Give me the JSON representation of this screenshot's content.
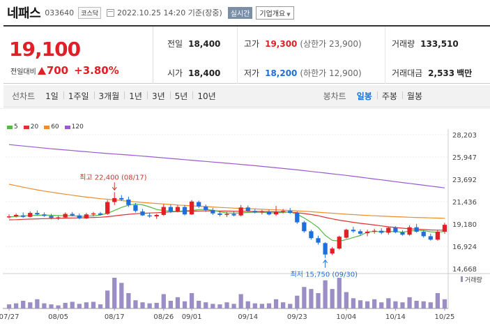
{
  "header": {
    "name": "네패스",
    "code": "033640",
    "market": "코스닥",
    "timestamp": "2022.10.25 14:20 기준(장중)",
    "realtime": "실시간",
    "company_btn": "기업개요"
  },
  "price": {
    "current": "19,100",
    "change_label": "전일대비",
    "change": "700",
    "change_pct": "+3.80%",
    "up_color": "#e01f26",
    "down_color": "#1e6fd9"
  },
  "quote": {
    "prev_close_label": "전일",
    "prev_close": "18,400",
    "open_label": "시가",
    "open": "18,400",
    "high_label": "고가",
    "high": "19,300",
    "upper_limit": "(상한가 23,900)",
    "low_label": "저가",
    "low": "18,200",
    "lower_limit": "(하한가 12,900)",
    "volume_label": "거래량",
    "volume": "133,510",
    "amount_label": "거래대금",
    "amount": "2,533",
    "amount_unit": "백만"
  },
  "toolbar": {
    "line_label": "선차트",
    "periods": [
      "1일",
      "1주일",
      "3개월",
      "1년",
      "3년",
      "5년",
      "10년"
    ],
    "candle_label": "봉차트",
    "candle_types": [
      "일봉",
      "주봉",
      "월봉"
    ],
    "active_candle": 0
  },
  "chart_data": {
    "type": "candlestick",
    "legend": [
      {
        "name": "5",
        "color": "#57b847"
      },
      {
        "name": "20",
        "color": "#e03131"
      },
      {
        "name": "60",
        "color": "#f08c2a"
      },
      {
        "name": "120",
        "color": "#9b59d0"
      }
    ],
    "y_ticks": [
      "28,203",
      "25,947",
      "23,692",
      "21,436",
      "19,180",
      "16,924",
      "14,668"
    ],
    "ylim": [
      14668,
      28203
    ],
    "x_ticks": [
      "07/27",
      "08/05",
      "08/17",
      "08/26",
      "09/01",
      "09/14",
      "09/23",
      "10/04",
      "10/14",
      "10/25"
    ],
    "x_tick_index": [
      0,
      7,
      15,
      22,
      26,
      34,
      41,
      48,
      55,
      62
    ],
    "volume_label": "거래량",
    "max_label": "최고 22,400 (08/17)",
    "max_index": 15,
    "max_value": 22400,
    "min_label": "최저 15,750 (09/30)",
    "min_index": 45,
    "min_value": 15750,
    "candles": [
      [
        19850,
        20150,
        19750,
        19950
      ],
      [
        19950,
        20250,
        19850,
        20100
      ],
      [
        20050,
        20350,
        19800,
        19900
      ],
      [
        19900,
        20450,
        19850,
        20300
      ],
      [
        20300,
        20550,
        20050,
        20150
      ],
      [
        20150,
        20350,
        19900,
        20000
      ],
      [
        20000,
        20200,
        19650,
        19800
      ],
      [
        19800,
        20000,
        19600,
        19850
      ],
      [
        19850,
        20350,
        19750,
        20200
      ],
      [
        20200,
        20400,
        19950,
        20050
      ],
      [
        20050,
        20250,
        19650,
        19750
      ],
      [
        19750,
        20300,
        19700,
        20150
      ],
      [
        20150,
        20400,
        19950,
        20250
      ],
      [
        20250,
        20400,
        20050,
        20100
      ],
      [
        20200,
        21600,
        20100,
        21400
      ],
      [
        21400,
        22400,
        21100,
        21800
      ],
      [
        21800,
        22100,
        21500,
        21650
      ],
      [
        21650,
        21950,
        20900,
        21100
      ],
      [
        21100,
        21300,
        20350,
        20500
      ],
      [
        20450,
        20700,
        20000,
        20050
      ],
      [
        20050,
        20300,
        19800,
        19950
      ],
      [
        19950,
        20200,
        19700,
        20100
      ],
      [
        20100,
        21200,
        20000,
        20900
      ],
      [
        20900,
        21150,
        20300,
        20450
      ],
      [
        20450,
        21100,
        20350,
        20900
      ],
      [
        20900,
        21100,
        20050,
        20150
      ],
      [
        20150,
        21600,
        20100,
        21450
      ],
      [
        21400,
        21550,
        20800,
        20950
      ],
      [
        20950,
        21150,
        20400,
        20600
      ],
      [
        20600,
        20800,
        20100,
        20250
      ],
      [
        20250,
        20500,
        19950,
        20100
      ],
      [
        20100,
        20400,
        19900,
        20200
      ],
      [
        20200,
        20500,
        19950,
        20050
      ],
      [
        20050,
        21100,
        19950,
        20850
      ],
      [
        20850,
        21050,
        20400,
        20500
      ],
      [
        20500,
        20700,
        20250,
        20350
      ],
      [
        20350,
        20600,
        20150,
        20450
      ],
      [
        20450,
        20650,
        20050,
        20150
      ],
      [
        20150,
        21000,
        20000,
        20400
      ],
      [
        20400,
        20700,
        20250,
        20500
      ],
      [
        20500,
        20800,
        20200,
        20300
      ],
      [
        20300,
        20450,
        19200,
        19350
      ],
      [
        19350,
        19500,
        18300,
        18450
      ],
      [
        18450,
        18600,
        17600,
        17750
      ],
      [
        17750,
        18000,
        17100,
        17300
      ],
      [
        17250,
        17350,
        15750,
        16100
      ],
      [
        16200,
        16850,
        16050,
        16700
      ],
      [
        16700,
        18000,
        16600,
        17900
      ],
      [
        17800,
        18700,
        17700,
        18600
      ],
      [
        18600,
        18900,
        18300,
        18450
      ],
      [
        18450,
        18650,
        18050,
        18200
      ],
      [
        18250,
        18600,
        17950,
        18400
      ],
      [
        18400,
        18700,
        18200,
        18500
      ],
      [
        18500,
        18750,
        18150,
        18300
      ],
      [
        18300,
        18900,
        18100,
        18800
      ],
      [
        18800,
        18950,
        18250,
        18350
      ],
      [
        18350,
        18550,
        18000,
        18100
      ],
      [
        18100,
        19050,
        18000,
        18850
      ],
      [
        18850,
        19200,
        18300,
        18400
      ],
      [
        18400,
        18550,
        17800,
        17950
      ],
      [
        17950,
        18200,
        17500,
        17600
      ],
      [
        17600,
        18600,
        17500,
        18400
      ],
      [
        18400,
        19300,
        18200,
        19100
      ]
    ],
    "volumes": [
      8,
      10,
      15,
      12,
      18,
      10,
      8,
      6,
      11,
      13,
      9,
      12,
      13,
      8,
      35,
      60,
      50,
      30,
      16,
      12,
      10,
      11,
      28,
      15,
      22,
      14,
      30,
      15,
      12,
      9,
      8,
      12,
      9,
      28,
      14,
      10,
      9,
      10,
      18,
      12,
      9,
      25,
      42,
      38,
      30,
      55,
      38,
      60,
      32,
      20,
      16,
      14,
      18,
      12,
      20,
      14,
      12,
      22,
      15,
      14,
      12,
      30,
      18
    ],
    "ma5": [
      19900,
      19950,
      19990,
      20040,
      20060,
      20090,
      20060,
      20030,
      20020,
      20020,
      19960,
      19960,
      20020,
      20090,
      20260,
      20550,
      20860,
      21080,
      21200,
      21120,
      20910,
      20650,
      20540,
      20480,
      20450,
      20530,
      20550,
      20640,
      20660,
      20570,
      20410,
      20300,
      20280,
      20300,
      20350,
      20370,
      20370,
      20310,
      20290,
      20350,
      20400,
      20160,
      19790,
      19340,
      18830,
      18040,
      17530,
      17460,
      17600,
      17820,
      18020,
      18370,
      18440,
      18400,
      18430,
      18420,
      18360,
      18470,
      18530,
      18510,
      18400,
      18350,
      18440
    ],
    "ma20": [
      19600,
      19620,
      19650,
      19680,
      19700,
      19720,
      19740,
      19760,
      19780,
      19790,
      19800,
      19820,
      19840,
      19860,
      19920,
      20000,
      20090,
      20160,
      20220,
      20260,
      20290,
      20320,
      20360,
      20400,
      20430,
      20460,
      20480,
      20500,
      20510,
      20510,
      20500,
      20490,
      20470,
      20470,
      20460,
      20450,
      20440,
      20420,
      20410,
      20400,
      20390,
      20320,
      20240,
      20140,
      20020,
      19850,
      19700,
      19570,
      19460,
      19350,
      19250,
      19170,
      19080,
      18990,
      18900,
      18830,
      18760,
      18700,
      18660,
      18620,
      18580,
      18560,
      18560
    ],
    "ma60": [
      23200,
      23050,
      22900,
      22760,
      22630,
      22510,
      22400,
      22290,
      22190,
      22090,
      21990,
      21900,
      21820,
      21740,
      21680,
      21620,
      21550,
      21480,
      21420,
      21360,
      21300,
      21250,
      21200,
      21150,
      21100,
      21060,
      21020,
      20980,
      20940,
      20900,
      20860,
      20820,
      20790,
      20760,
      20730,
      20700,
      20670,
      20640,
      20610,
      20580,
      20550,
      20510,
      20470,
      20420,
      20370,
      20320,
      20270,
      20220,
      20170,
      20130,
      20090,
      20050,
      20010,
      19980,
      19950,
      19920,
      19890,
      19860,
      19840,
      19820,
      19800,
      19780,
      19760
    ],
    "ma120": [
      27200,
      27130,
      27060,
      26990,
      26920,
      26850,
      26780,
      26720,
      26660,
      26600,
      26540,
      26480,
      26420,
      26360,
      26300,
      26250,
      26200,
      26150,
      26100,
      26040,
      25980,
      25920,
      25860,
      25800,
      25740,
      25680,
      25620,
      25560,
      25500,
      25440,
      25380,
      25320,
      25260,
      25200,
      25140,
      25070,
      25000,
      24930,
      24860,
      24790,
      24720,
      24650,
      24570,
      24490,
      24410,
      24330,
      24250,
      24170,
      24090,
      24000,
      23910,
      23820,
      23730,
      23640,
      23550,
      23460,
      23370,
      23280,
      23190,
      23100,
      23010,
      22920,
      22830
    ]
  }
}
